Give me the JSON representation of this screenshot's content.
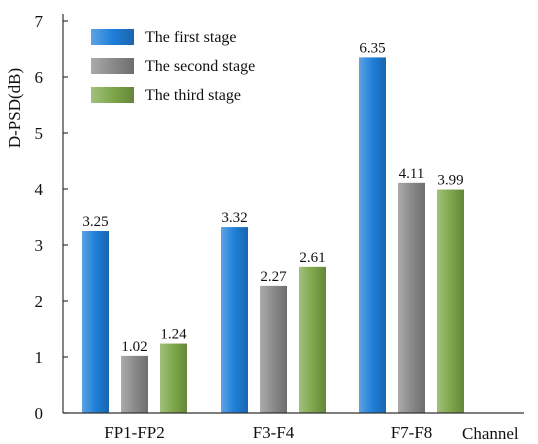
{
  "chart_data": {
    "type": "bar",
    "categories": [
      "FP1-FP2",
      "F3-F4",
      "F7-F8"
    ],
    "series": [
      {
        "name": "The first stage",
        "values": [
          3.25,
          3.32,
          6.35
        ],
        "color": "#1f7fd8"
      },
      {
        "name": "The second stage",
        "values": [
          1.02,
          2.27,
          4.11
        ],
        "color": "#8a8a8a"
      },
      {
        "name": "The third stage",
        "values": [
          1.24,
          2.61,
          3.99
        ],
        "color": "#7ea74a"
      }
    ],
    "data_labels": [
      [
        "3.25",
        "3.32",
        "6.35"
      ],
      [
        "1.02",
        "2.27",
        "4.11"
      ],
      [
        "1.24",
        "2.61",
        "3.99"
      ]
    ],
    "xlabel": "Channel",
    "ylabel": "D-PSD(dB)",
    "ylim": [
      0,
      7
    ],
    "yticks": [
      0,
      1,
      2,
      3,
      4,
      5,
      6,
      7
    ],
    "grid": false,
    "legend_position": "top-left"
  }
}
